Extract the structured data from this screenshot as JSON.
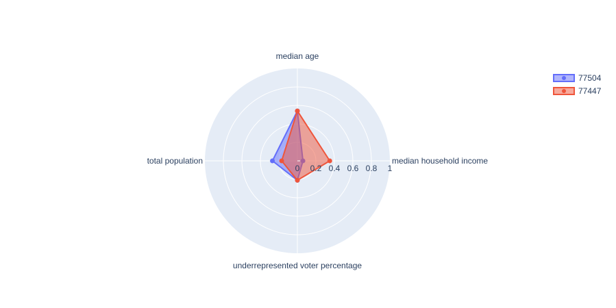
{
  "chart_data": {
    "type": "radar",
    "axes": [
      "median age",
      "median household income",
      "underrepresented voter percentage",
      "total population"
    ],
    "radial_range": [
      0,
      1
    ],
    "radial_ticks": [
      "0",
      "0.2",
      "0.4",
      "0.6",
      "0.8",
      "1"
    ],
    "grid": true,
    "legend_position": "top-right",
    "series": [
      {
        "name": "77504",
        "color": "#636efa",
        "values": [
          0.54,
          0.06,
          0.21,
          0.27
        ]
      },
      {
        "name": "77447",
        "color": "#ef553b",
        "values": [
          0.54,
          0.35,
          0.21,
          0.17
        ]
      }
    ]
  }
}
